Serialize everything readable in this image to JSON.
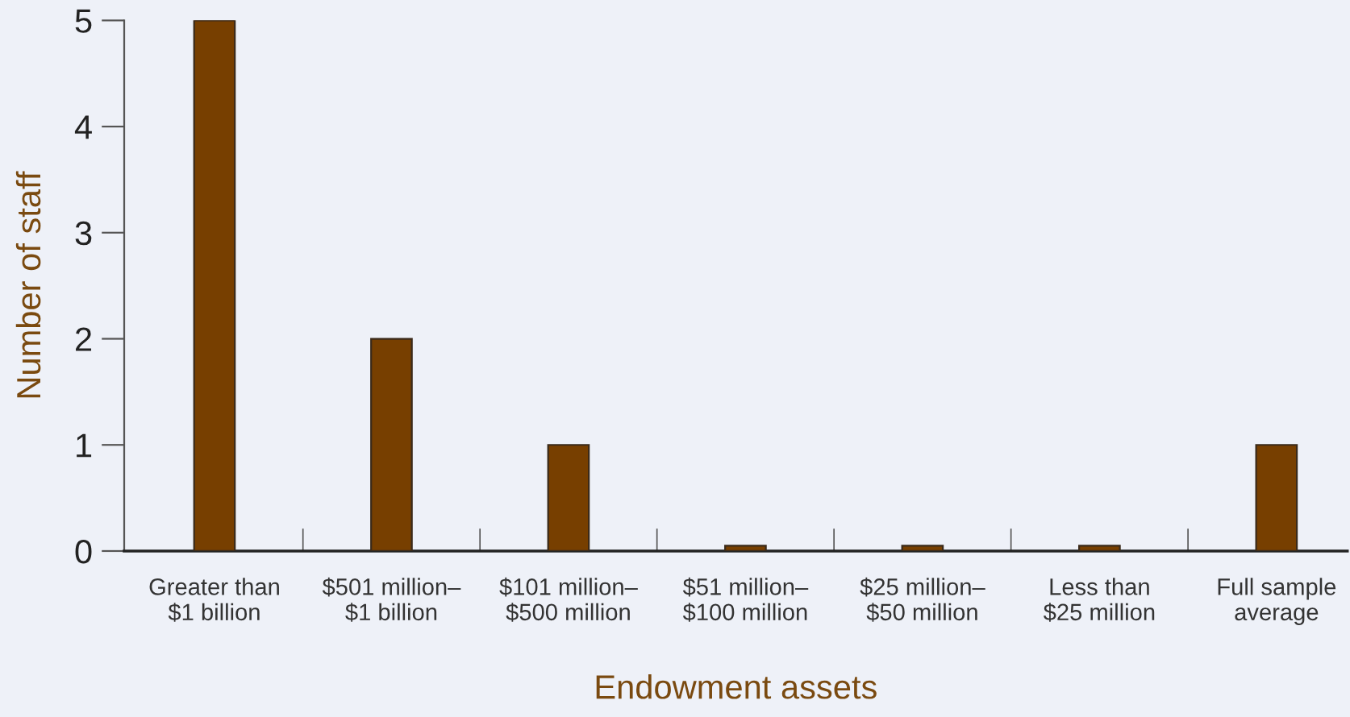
{
  "chart_data": {
    "type": "bar",
    "xlabel": "Endowment assets",
    "ylabel": "Number of staff",
    "categories": [
      "Greater than\n$1 billion",
      "$501 million–\n$1 billion",
      "$101 million–\n$500 million",
      "$51 million–\n$100 million",
      "$25 million–\n$50 million",
      "Less than\n$25 million",
      "Full sample\naverage"
    ],
    "values": [
      5,
      2,
      1,
      0.05,
      0.05,
      0.05,
      1
    ],
    "color": "#773f00",
    "ylim": [
      0,
      5
    ],
    "yticks": [
      0,
      1,
      2,
      3,
      4,
      5
    ],
    "grid": false,
    "legend": false
  }
}
